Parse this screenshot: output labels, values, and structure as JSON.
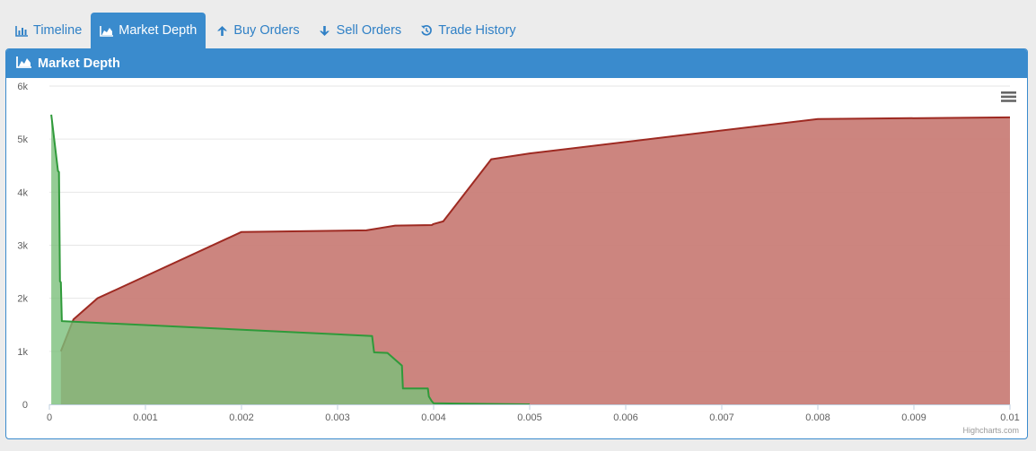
{
  "tabs": [
    {
      "label": "Timeline",
      "icon": "bar-chart-icon",
      "active": false
    },
    {
      "label": "Market Depth",
      "icon": "area-chart-icon",
      "active": true
    },
    {
      "label": "Buy Orders",
      "icon": "arrow-up-icon",
      "active": false
    },
    {
      "label": "Sell Orders",
      "icon": "arrow-down-icon",
      "active": false
    },
    {
      "label": "Trade History",
      "icon": "history-icon",
      "active": false
    }
  ],
  "panel": {
    "title": "Market Depth",
    "icon": "area-chart-icon"
  },
  "colors": {
    "accent": "#3a8bcd",
    "tab_text": "#2f80c6",
    "bid_fill": "#7bbf7b",
    "bid_line": "#2f9a3a",
    "ask_fill": "#c97e78",
    "ask_line": "#9e2a22"
  },
  "chart_data": {
    "type": "area",
    "title": "",
    "xlabel": "",
    "ylabel": "",
    "xlim": [
      0,
      0.01
    ],
    "ylim": [
      0,
      6000
    ],
    "x_ticks": [
      "0",
      "0.001",
      "0.002",
      "0.003",
      "0.004",
      "0.005",
      "0.006",
      "0.007",
      "0.008",
      "0.009",
      "0.01"
    ],
    "y_ticks": [
      "0",
      "1k",
      "2k",
      "3k",
      "4k",
      "5k",
      "6k"
    ],
    "grid": true,
    "legend": "none",
    "credit": "Highcharts.com",
    "series": [
      {
        "side": "bid",
        "points": [
          [
            2e-05,
            5460
          ],
          [
            9e-05,
            4400
          ],
          [
            0.0001,
            4380
          ],
          [
            0.00011,
            2320
          ],
          [
            0.00012,
            2300
          ],
          [
            0.00013,
            1570
          ],
          [
            0.00336,
            1290
          ],
          [
            0.00338,
            980
          ],
          [
            0.00352,
            970
          ],
          [
            0.00367,
            730
          ],
          [
            0.00368,
            300
          ],
          [
            0.00394,
            300
          ],
          [
            0.00395,
            150
          ],
          [
            0.00398,
            60
          ],
          [
            0.004,
            20
          ],
          [
            0.005,
            0
          ]
        ]
      },
      {
        "side": "ask",
        "points": [
          [
            0.00012,
            1000
          ],
          [
            0.00025,
            1600
          ],
          [
            0.0005,
            2000
          ],
          [
            0.002,
            3250
          ],
          [
            0.0033,
            3280
          ],
          [
            0.0036,
            3370
          ],
          [
            0.00398,
            3380
          ],
          [
            0.004,
            3400
          ],
          [
            0.0041,
            3450
          ],
          [
            0.0046,
            4620
          ],
          [
            0.005,
            4730
          ],
          [
            0.008,
            5380
          ],
          [
            0.01,
            5410
          ]
        ]
      }
    ]
  }
}
